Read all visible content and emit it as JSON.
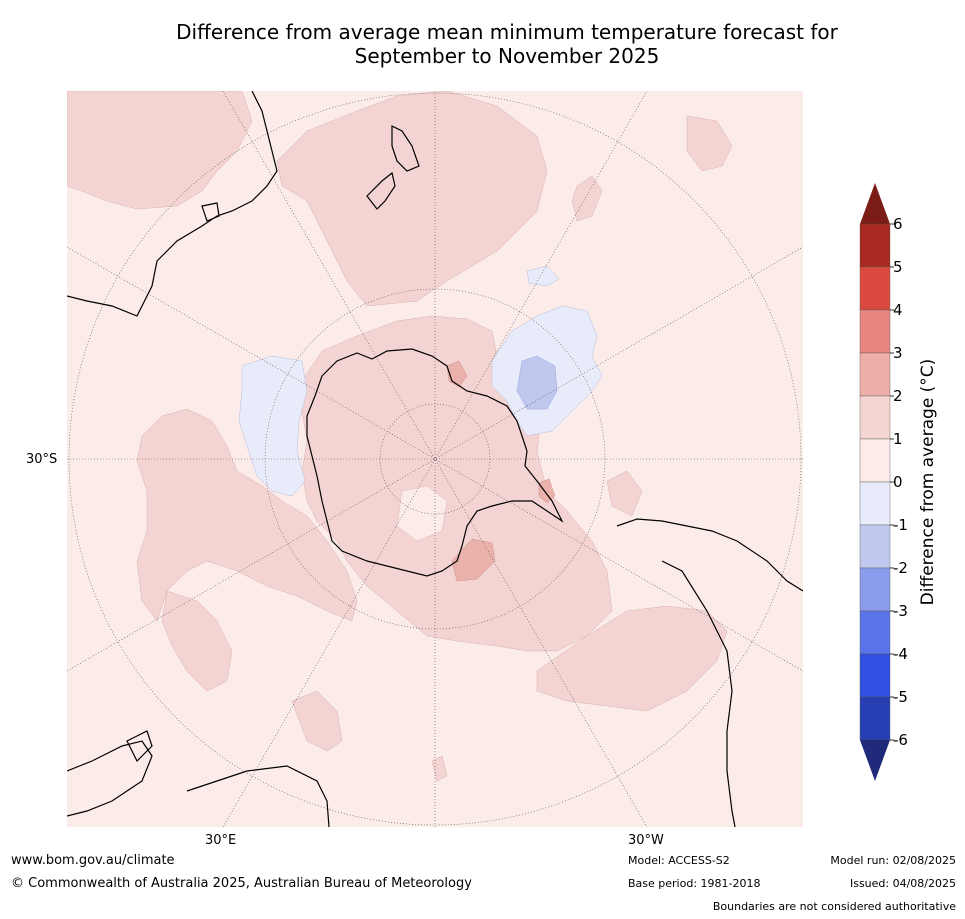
{
  "title_line1": "Difference from average mean minimum temperature forecast for",
  "title_line2": "September to November 2025",
  "map": {
    "projection": "south-polar-stereographic",
    "lat_label": "30°S",
    "lon_labels": [
      "30°E",
      "30°W"
    ],
    "palette": {
      "background_anomaly_0_1": "#fbebe9",
      "anomaly_1_2": "#f3d4d2",
      "anomaly_2_3": "#ebb2ac",
      "anomaly_neg0_neg1": "#e8ebf9",
      "anomaly_neg1_neg2": "#c0c8f0",
      "coastline": "#000000",
      "graticule": "#555555"
    }
  },
  "colorbar": {
    "label": "Difference from average (°C)",
    "ticks": [
      "6",
      "5",
      "4",
      "3",
      "2",
      "1",
      "0",
      "-1",
      "-2",
      "-3",
      "-4",
      "-5",
      "-6"
    ],
    "colors_top_to_bottom": [
      "#7b1c17",
      "#a92a22",
      "#dc4a3f",
      "#e98680",
      "#edaea7",
      "#f4d5d2",
      "#fbebe9",
      "#e8ebf9",
      "#c0c8f0",
      "#8b9ced",
      "#5b73e8",
      "#2f50e0",
      "#263fb3",
      "#1f2a7a"
    ]
  },
  "footer": {
    "website": "www.bom.gov.au/climate",
    "copyright": "© Commonwealth of Australia 2025, Australian Bureau of Meteorology",
    "model": "Model: ACCESS-S2",
    "base_period": "Base period: 1981-2018",
    "model_run": "Model run: 02/08/2025",
    "issued": "Issued: 04/08/2025",
    "disclaimer": "Boundaries are not considered authoritative"
  }
}
